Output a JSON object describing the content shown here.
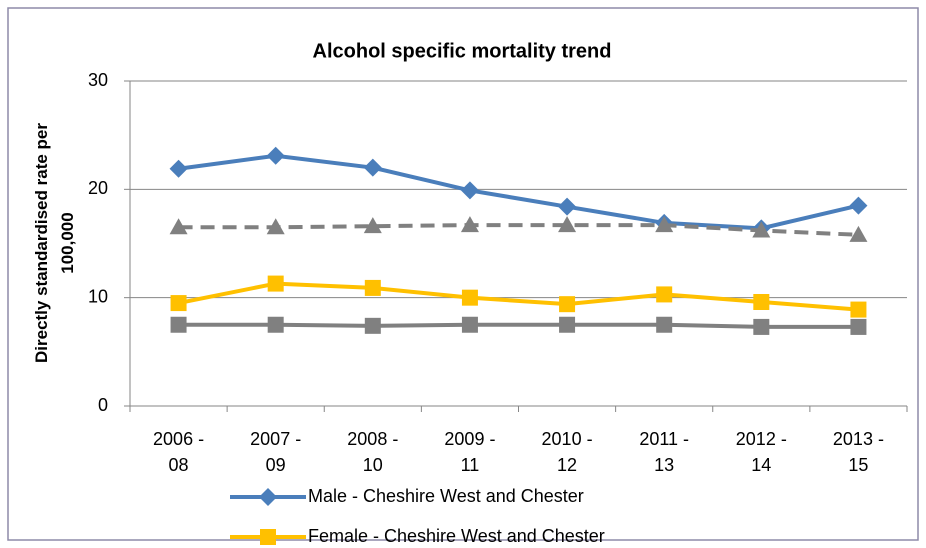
{
  "chart_data": {
    "type": "line",
    "title": "Alcohol specific mortality trend",
    "ylabel": "Directly standardised rate per 100,000",
    "categories": [
      "2006 - 08",
      "2007 - 09",
      "2008 - 10",
      "2009 - 11",
      "2010 - 12",
      "2011 - 13",
      "2012 - 14",
      "2013 - 15"
    ],
    "ylim": [
      0,
      30
    ],
    "yticks": [
      0,
      10,
      20,
      30
    ],
    "grid": true,
    "series": [
      {
        "name": "Male - Cheshire West and Chester",
        "color": "#4a7ebb",
        "marker": "diamond",
        "linestyle": "solid",
        "values": [
          21.9,
          23.1,
          22.0,
          19.9,
          18.4,
          16.9,
          16.4,
          18.5
        ]
      },
      {
        "color": "#808080",
        "marker": "triangle",
        "linestyle": "dashed",
        "values": [
          16.5,
          16.5,
          16.6,
          16.7,
          16.7,
          16.7,
          16.2,
          15.8
        ]
      },
      {
        "name": "Female - Cheshire West and Chester",
        "color": "#ffc000",
        "marker": "square",
        "linestyle": "solid",
        "values": [
          9.5,
          11.3,
          10.9,
          10.0,
          9.4,
          10.3,
          9.6,
          8.9
        ]
      },
      {
        "color": "#808080",
        "marker": "square",
        "linestyle": "solid",
        "values": [
          7.5,
          7.5,
          7.4,
          7.5,
          7.5,
          7.5,
          7.3,
          7.3
        ]
      }
    ]
  }
}
